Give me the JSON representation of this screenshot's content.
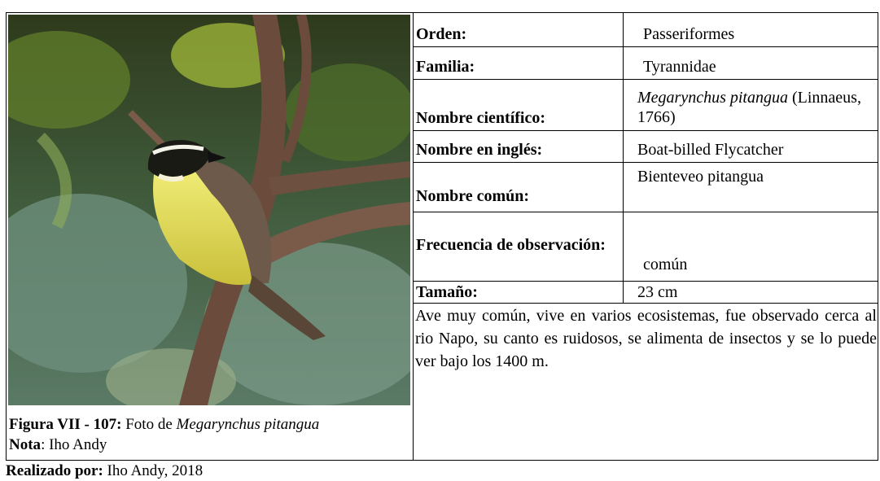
{
  "figure": {
    "caption_label": "Figura VII - 107:",
    "caption_text": "Foto de",
    "caption_species": "Megarynchus pitangua",
    "note_label": "Nota",
    "note_text": ": Iho Andy"
  },
  "table": {
    "rows": [
      {
        "label": "Orden:",
        "value": "Passeriformes"
      },
      {
        "label": "Familia:",
        "value": "Tyrannidae"
      },
      {
        "label": "Nombre científico:",
        "value_italic": "Megarynchus pitangua",
        "value": "(Linnaeus, 1766)"
      },
      {
        "label": "Nombre en inglés:",
        "value": "Boat-billed Flycatcher"
      },
      {
        "label": "Nombre común:",
        "value": "Bienteveo pitangua"
      },
      {
        "label": "Frecuencia de observación:",
        "value": "común"
      },
      {
        "label": "Tamaño:",
        "value": "23 cm"
      }
    ],
    "description": "Ave muy común, vive en varios ecosistemas, fue observado cerca al rio Napo, su canto es ruidosos, se alimenta de insectos y se lo puede ver bajo los 1400 m."
  },
  "footer": {
    "label": "Realizado por:",
    "text": "Iho Andy, 2018"
  }
}
